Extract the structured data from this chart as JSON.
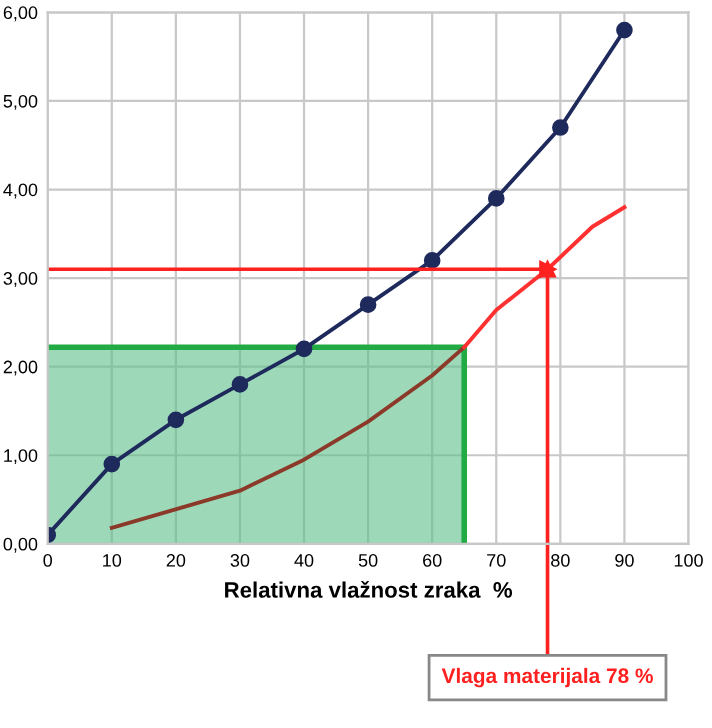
{
  "chart_data": {
    "type": "line",
    "xlabel": "Relativna vlažnost zraka  %",
    "xlim": [
      0,
      100
    ],
    "xticks": [
      0,
      10,
      20,
      30,
      40,
      50,
      60,
      70,
      80,
      90,
      100
    ],
    "ylim": [
      0,
      6
    ],
    "yticks": [
      {
        "value": 0,
        "label": "0,00"
      },
      {
        "value": 1,
        "label": "1,00"
      },
      {
        "value": 2,
        "label": "2,00"
      },
      {
        "value": 3,
        "label": "3,00"
      },
      {
        "value": 4,
        "label": "4,00"
      },
      {
        "value": 5,
        "label": "5,00"
      },
      {
        "value": 6,
        "label": "6,00"
      }
    ],
    "grid": true,
    "legend": false,
    "series": [
      {
        "type": "area",
        "color": "#5cbf8a",
        "x": [
          0,
          65
        ],
        "values": [
          2.22,
          2.22
        ]
      },
      {
        "color": "#1f2a5c",
        "marker": "circle",
        "x": [
          0,
          10,
          20,
          30,
          40,
          50,
          60,
          70,
          80,
          90
        ],
        "values": [
          0.1,
          0.9,
          1.4,
          1.8,
          2.2,
          2.7,
          3.2,
          3.9,
          4.7,
          5.8
        ]
      },
      {
        "color": "#8b3a2a",
        "marker": "none",
        "x": [
          10,
          30,
          40,
          50,
          60,
          65
        ],
        "values": [
          0.18,
          0.6,
          0.95,
          1.38,
          1.9,
          2.22
        ]
      },
      {
        "color": "#ff3030",
        "marker": "none",
        "x": [
          65,
          70,
          78,
          85,
          90
        ],
        "values": [
          2.22,
          2.64,
          3.1,
          3.58,
          3.8
        ]
      }
    ],
    "ref_lines": [
      {
        "axis": "y",
        "value": 3.1,
        "color": "#ff2020"
      },
      {
        "axis": "x",
        "value": 78,
        "label": "Vlaga materijala 78 %",
        "color": "#ff2020"
      }
    ]
  }
}
